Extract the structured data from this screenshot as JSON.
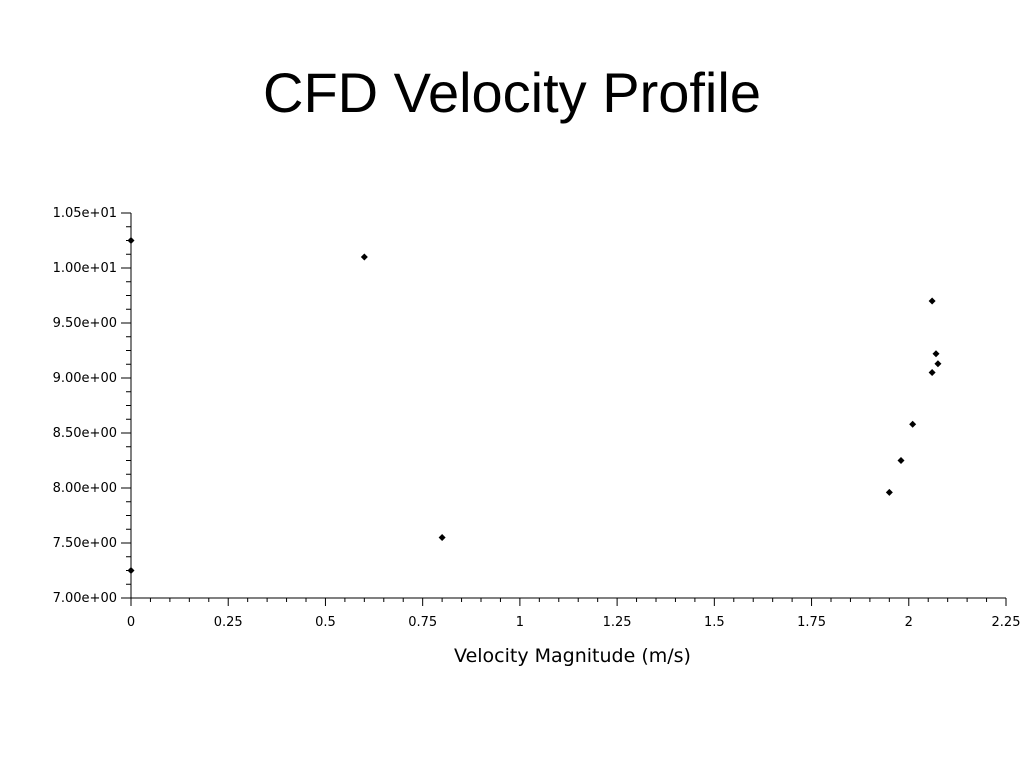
{
  "slide": {
    "title": "CFD Velocity Profile"
  },
  "chart_data": {
    "type": "scatter",
    "title": "",
    "xlabel": "Velocity Magnitude (m/s)",
    "ylabel": "",
    "xlim": [
      0,
      2.25
    ],
    "ylim": [
      7.0,
      10.5
    ],
    "x_ticks": [
      0,
      0.25,
      0.5,
      0.75,
      1,
      1.25,
      1.5,
      1.75,
      2,
      2.25
    ],
    "x_tick_labels": [
      "0",
      "0.25",
      "0.5",
      "0.75",
      "1",
      "1.25",
      "1.5",
      "1.75",
      "2",
      "2.25"
    ],
    "y_ticks": [
      7.0,
      7.5,
      8.0,
      8.5,
      9.0,
      9.5,
      10.0,
      10.5
    ],
    "y_tick_labels": [
      "7.00e+00",
      "7.50e+00",
      "8.00e+00",
      "8.50e+00",
      "9.00e+00",
      "9.50e+00",
      "1.00e+01",
      "1.05e+01"
    ],
    "grid": false,
    "marker": "diamond",
    "marker_color": "#000000",
    "points": [
      {
        "x": 0.0,
        "y": 10.25
      },
      {
        "x": 0.6,
        "y": 10.1
      },
      {
        "x": 0.8,
        "y": 7.55
      },
      {
        "x": 0.0,
        "y": 7.25
      },
      {
        "x": 2.06,
        "y": 9.7
      },
      {
        "x": 2.07,
        "y": 9.22
      },
      {
        "x": 2.075,
        "y": 9.13
      },
      {
        "x": 2.06,
        "y": 9.05
      },
      {
        "x": 2.01,
        "y": 8.58
      },
      {
        "x": 1.98,
        "y": 8.25
      },
      {
        "x": 1.95,
        "y": 7.96
      }
    ]
  }
}
